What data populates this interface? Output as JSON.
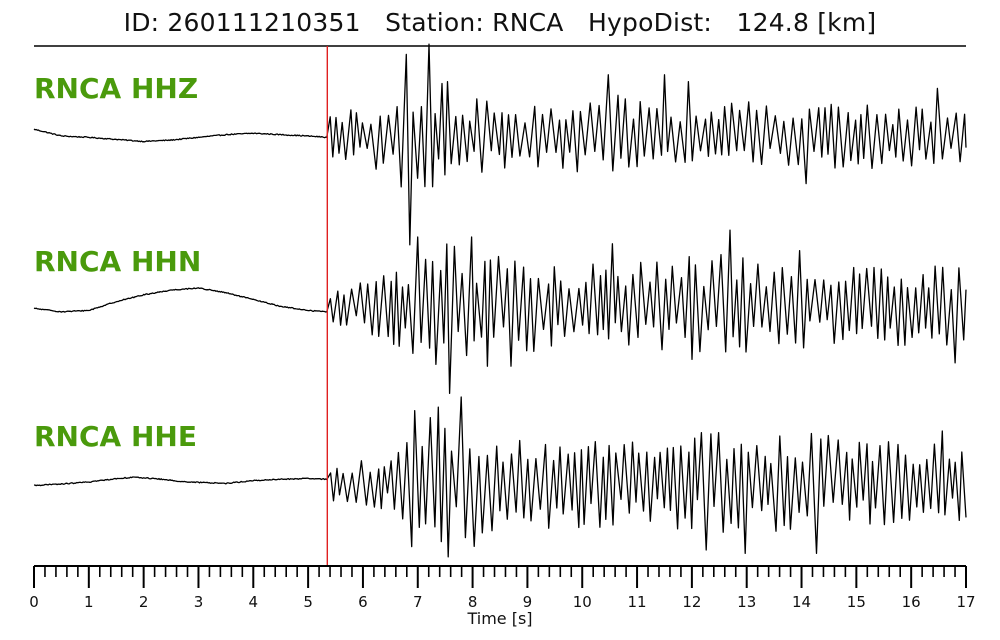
{
  "header": {
    "title": "ID: 260111210351   Station: RNCA   HypoDist:   124.8 [km]"
  },
  "colors": {
    "label": "#4a9a0c",
    "trace": "#000000",
    "pick_line": "#e02020",
    "axis": "#000000"
  },
  "chart_data": {
    "type": "line",
    "subtype": "seismogram",
    "station": "RNCA",
    "hypodist_km": 124.8,
    "event_id": "260111210351",
    "xlabel": "Time [s]",
    "xlim": [
      0,
      17
    ],
    "x_ticks": [
      0,
      1,
      2,
      3,
      4,
      5,
      6,
      7,
      8,
      9,
      10,
      11,
      12,
      13,
      14,
      15,
      16,
      17
    ],
    "x_tick_labels": [
      "0",
      "1",
      "2",
      "3",
      "4",
      "5",
      "6",
      "7",
      "8",
      "9",
      "10",
      "11",
      "12",
      "13",
      "14",
      "15",
      "16",
      "17"
    ],
    "minor_tick_step": 0.2,
    "pick_time_s": 5.35,
    "grid": false,
    "legend": "none",
    "series": [
      {
        "name": "RNCA HHZ",
        "pre_event": [
          [
            0,
            0.1
          ],
          [
            0.5,
            0.0
          ],
          [
            1.0,
            -0.02
          ],
          [
            1.5,
            -0.05
          ],
          [
            2.0,
            -0.08
          ],
          [
            2.5,
            -0.06
          ],
          [
            3.0,
            -0.02
          ],
          [
            3.5,
            0.02
          ],
          [
            4.0,
            0.04
          ],
          [
            4.5,
            0.02
          ],
          [
            5.0,
            0.0
          ],
          [
            5.35,
            -0.02
          ]
        ],
        "peaks": [
          [
            6.8,
            1.2
          ],
          [
            6.85,
            -1.6
          ],
          [
            7.2,
            1.35
          ],
          [
            7.55,
            0.8
          ],
          [
            10.45,
            0.9
          ],
          [
            11.45,
            0.9
          ],
          [
            12.0,
            0.8
          ],
          [
            14.1,
            -0.7
          ],
          [
            16.5,
            0.7
          ]
        ],
        "amp_envelope": [
          [
            5.35,
            0.3
          ],
          [
            6.3,
            0.55
          ],
          [
            7.0,
            1.0
          ],
          [
            7.8,
            0.6
          ],
          [
            9.0,
            0.45
          ],
          [
            10.5,
            0.6
          ],
          [
            12.0,
            0.55
          ],
          [
            14.0,
            0.5
          ],
          [
            17.0,
            0.45
          ]
        ]
      },
      {
        "name": "RNCA HHN",
        "pre_event": [
          [
            0,
            -0.05
          ],
          [
            0.5,
            -0.1
          ],
          [
            1.0,
            -0.08
          ],
          [
            1.5,
            0.05
          ],
          [
            2.0,
            0.15
          ],
          [
            2.5,
            0.22
          ],
          [
            3.0,
            0.25
          ],
          [
            3.5,
            0.18
          ],
          [
            4.0,
            0.08
          ],
          [
            4.5,
            -0.02
          ],
          [
            5.0,
            -0.08
          ],
          [
            5.35,
            -0.1
          ]
        ],
        "peaks": [
          [
            7.0,
            1.0
          ],
          [
            7.6,
            -1.3
          ],
          [
            7.9,
            1.0
          ],
          [
            8.3,
            -0.9
          ],
          [
            8.7,
            -0.9
          ],
          [
            10.5,
            0.9
          ],
          [
            12.0,
            -0.8
          ],
          [
            12.75,
            1.1
          ],
          [
            14.0,
            0.8
          ],
          [
            16.8,
            -0.85
          ]
        ],
        "amp_envelope": [
          [
            5.35,
            0.25
          ],
          [
            6.3,
            0.5
          ],
          [
            7.5,
            1.0
          ],
          [
            8.5,
            0.75
          ],
          [
            10.0,
            0.6
          ],
          [
            12.5,
            0.75
          ],
          [
            14.5,
            0.6
          ],
          [
            17.0,
            0.6
          ]
        ]
      },
      {
        "name": "RNCA HHE",
        "pre_event": [
          [
            0,
            -0.05
          ],
          [
            0.5,
            -0.03
          ],
          [
            1.0,
            0.0
          ],
          [
            1.5,
            0.05
          ],
          [
            1.8,
            0.07
          ],
          [
            2.2,
            0.05
          ],
          [
            2.8,
            0.0
          ],
          [
            3.5,
            -0.02
          ],
          [
            4.0,
            0.02
          ],
          [
            4.5,
            0.04
          ],
          [
            5.0,
            0.05
          ],
          [
            5.35,
            0.04
          ]
        ],
        "peaks": [
          [
            6.85,
            -0.95
          ],
          [
            7.0,
            1.05
          ],
          [
            7.4,
            1.1
          ],
          [
            7.55,
            -1.1
          ],
          [
            7.8,
            1.25
          ],
          [
            12.25,
            -1.0
          ],
          [
            13.0,
            -1.05
          ],
          [
            14.2,
            -1.05
          ],
          [
            16.5,
            0.75
          ]
        ],
        "amp_envelope": [
          [
            5.35,
            0.3
          ],
          [
            6.6,
            0.45
          ],
          [
            6.8,
            1.0
          ],
          [
            7.8,
            1.0
          ],
          [
            9.0,
            0.7
          ],
          [
            11.0,
            0.65
          ],
          [
            13.0,
            0.8
          ],
          [
            15.0,
            0.65
          ],
          [
            17.0,
            0.6
          ]
        ]
      }
    ]
  }
}
